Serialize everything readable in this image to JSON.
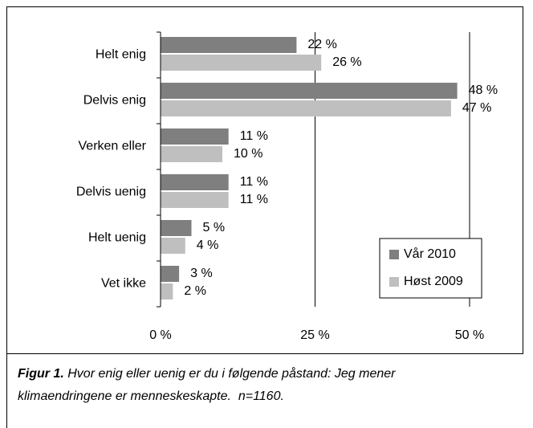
{
  "chart_data": {
    "type": "hbar",
    "categories": [
      "Helt enig",
      "Delvis enig",
      "Verken eller",
      "Delvis uenig",
      "Helt uenig",
      "Vet ikke"
    ],
    "series": [
      {
        "name": "Vår 2010",
        "color": "#7f7f7f",
        "values": [
          22,
          48,
          11,
          11,
          5,
          3
        ],
        "value_labels": [
          "22 %",
          "48 %",
          "11 %",
          "11 %",
          "5 %",
          "3 %"
        ]
      },
      {
        "name": "Høst 2009",
        "color": "#bfbfbf",
        "values": [
          26,
          47,
          10,
          11,
          4,
          2
        ],
        "value_labels": [
          "26 %",
          "47 %",
          "10 %",
          "11 %",
          "4 %",
          "2 %"
        ]
      }
    ],
    "xlim": [
      0,
      50
    ],
    "xticks": [
      {
        "value": 0,
        "label": "0 %"
      },
      {
        "value": 25,
        "label": "25 %"
      },
      {
        "value": 50,
        "label": "50 %"
      }
    ],
    "grid": true,
    "legend": "lower right"
  },
  "caption": {
    "label": "Figur 1.",
    "text": "Hvor enig eller uenig er du i følgende påstand: Jeg mener klimaendringene er menneskeskapte.  n=1160."
  }
}
